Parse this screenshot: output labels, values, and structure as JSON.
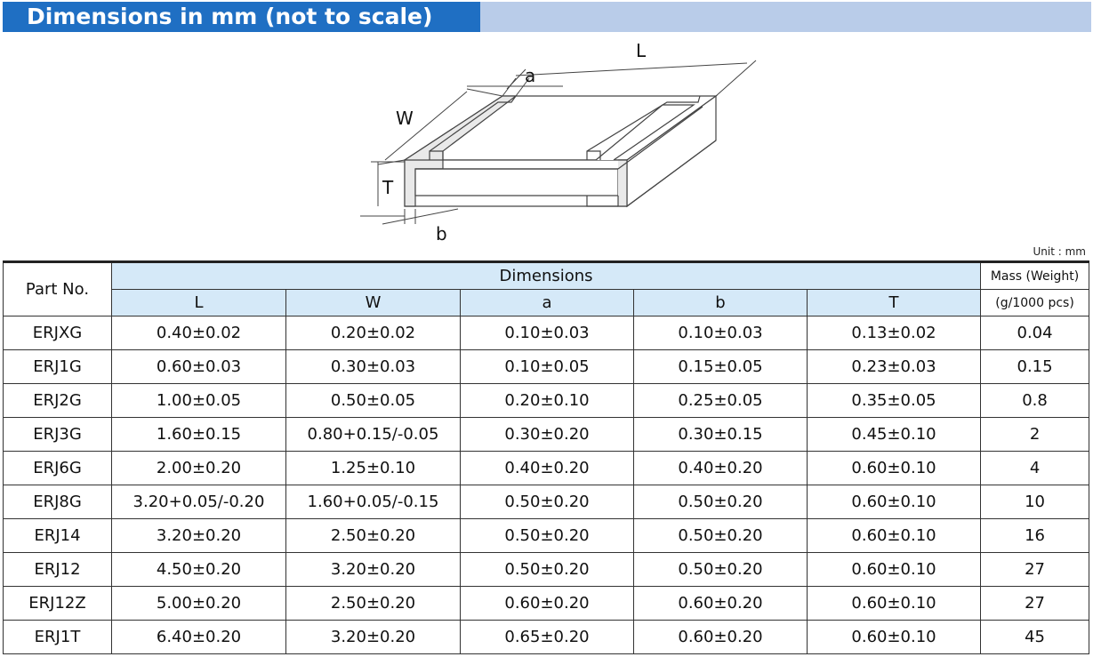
{
  "title": "Dimensions in mm (not to scale)",
  "unit_note": "Unit : mm",
  "diagram_labels": {
    "L": "L",
    "a": "a",
    "W": "W",
    "T": "T",
    "b": "b"
  },
  "table": {
    "part_no_header": "Part No.",
    "dimensions_header": "Dimensions",
    "mass_header_1": "Mass (Weight)",
    "mass_header_2": "(g/1000 pcs)",
    "sub_headers": [
      "L",
      "W",
      "a",
      "b",
      "T"
    ],
    "rows": [
      [
        "ERJXG",
        "0.40±0.02",
        "0.20±0.02",
        "0.10±0.03",
        "0.10±0.03",
        "0.13±0.02",
        "0.04"
      ],
      [
        "ERJ1G",
        "0.60±0.03",
        "0.30±0.03",
        "0.10±0.05",
        "0.15±0.05",
        "0.23±0.03",
        "0.15"
      ],
      [
        "ERJ2G",
        "1.00±0.05",
        "0.50±0.05",
        "0.20±0.10",
        "0.25±0.05",
        "0.35±0.05",
        "0.8"
      ],
      [
        "ERJ3G",
        "1.60±0.15",
        "0.80+0.15/-0.05",
        "0.30±0.20",
        "0.30±0.15",
        "0.45±0.10",
        "2"
      ],
      [
        "ERJ6G",
        "2.00±0.20",
        "1.25±0.10",
        "0.40±0.20",
        "0.40±0.20",
        "0.60±0.10",
        "4"
      ],
      [
        "ERJ8G",
        "3.20+0.05/-0.20",
        "1.60+0.05/-0.15",
        "0.50±0.20",
        "0.50±0.20",
        "0.60±0.10",
        "10"
      ],
      [
        "ERJ14",
        "3.20±0.20",
        "2.50±0.20",
        "0.50±0.20",
        "0.50±0.20",
        "0.60±0.10",
        "16"
      ],
      [
        "ERJ12",
        "4.50±0.20",
        "3.20±0.20",
        "0.50±0.20",
        "0.50±0.20",
        "0.60±0.10",
        "27"
      ],
      [
        "ERJ12Z",
        "5.00±0.20",
        "2.50±0.20",
        "0.60±0.20",
        "0.60±0.20",
        "0.60±0.10",
        "27"
      ],
      [
        "ERJ1T",
        "6.40±0.20",
        "3.20±0.20",
        "0.65±0.20",
        "0.60±0.20",
        "0.60±0.10",
        "45"
      ]
    ]
  }
}
